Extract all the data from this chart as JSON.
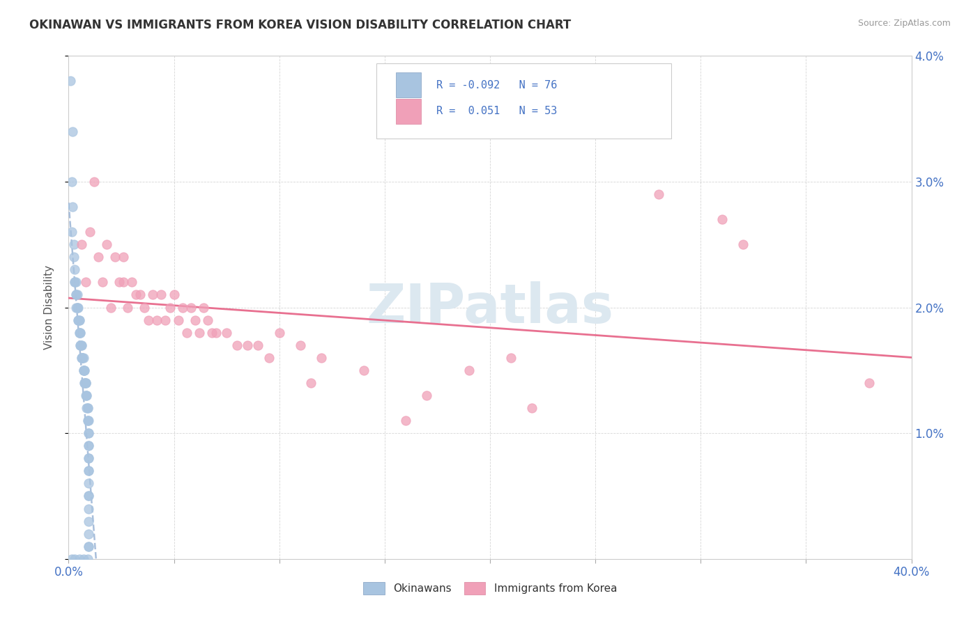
{
  "title": "OKINAWAN VS IMMIGRANTS FROM KOREA VISION DISABILITY CORRELATION CHART",
  "source": "Source: ZipAtlas.com",
  "ylabel": "Vision Disability",
  "xlim": [
    0.0,
    0.4
  ],
  "ylim": [
    0.0,
    0.04
  ],
  "okinawan_color": "#a8c4e0",
  "korea_color": "#f0a0b8",
  "trend_blue_color": "#a0b8d8",
  "trend_pink_color": "#e87090",
  "watermark_color": "#dce8f0",
  "okinawan_scatter": [
    [
      0.0008,
      0.038
    ],
    [
      0.0015,
      0.03
    ],
    [
      0.0015,
      0.026
    ],
    [
      0.002,
      0.034
    ],
    [
      0.002,
      0.028
    ],
    [
      0.0025,
      0.025
    ],
    [
      0.0025,
      0.024
    ],
    [
      0.003,
      0.023
    ],
    [
      0.003,
      0.022
    ],
    [
      0.003,
      0.022
    ],
    [
      0.0035,
      0.022
    ],
    [
      0.0035,
      0.021
    ],
    [
      0.0035,
      0.021
    ],
    [
      0.0035,
      0.02
    ],
    [
      0.004,
      0.021
    ],
    [
      0.004,
      0.02
    ],
    [
      0.004,
      0.02
    ],
    [
      0.0045,
      0.02
    ],
    [
      0.0045,
      0.019
    ],
    [
      0.0045,
      0.019
    ],
    [
      0.005,
      0.019
    ],
    [
      0.005,
      0.019
    ],
    [
      0.005,
      0.018
    ],
    [
      0.005,
      0.018
    ],
    [
      0.0055,
      0.018
    ],
    [
      0.0055,
      0.018
    ],
    [
      0.0055,
      0.017
    ],
    [
      0.0055,
      0.017
    ],
    [
      0.006,
      0.017
    ],
    [
      0.006,
      0.017
    ],
    [
      0.006,
      0.016
    ],
    [
      0.006,
      0.016
    ],
    [
      0.0065,
      0.016
    ],
    [
      0.0065,
      0.016
    ],
    [
      0.0065,
      0.016
    ],
    [
      0.007,
      0.016
    ],
    [
      0.007,
      0.015
    ],
    [
      0.007,
      0.015
    ],
    [
      0.007,
      0.015
    ],
    [
      0.0075,
      0.015
    ],
    [
      0.0075,
      0.015
    ],
    [
      0.0075,
      0.014
    ],
    [
      0.0075,
      0.014
    ],
    [
      0.008,
      0.014
    ],
    [
      0.008,
      0.014
    ],
    [
      0.008,
      0.014
    ],
    [
      0.008,
      0.013
    ],
    [
      0.0085,
      0.013
    ],
    [
      0.0085,
      0.013
    ],
    [
      0.0085,
      0.012
    ],
    [
      0.009,
      0.012
    ],
    [
      0.009,
      0.012
    ],
    [
      0.009,
      0.011
    ],
    [
      0.009,
      0.011
    ],
    [
      0.0095,
      0.011
    ],
    [
      0.0095,
      0.01
    ],
    [
      0.0095,
      0.01
    ],
    [
      0.0095,
      0.009
    ],
    [
      0.0095,
      0.009
    ],
    [
      0.0095,
      0.008
    ],
    [
      0.0095,
      0.008
    ],
    [
      0.0095,
      0.007
    ],
    [
      0.0095,
      0.007
    ],
    [
      0.0095,
      0.006
    ],
    [
      0.0095,
      0.005
    ],
    [
      0.0095,
      0.005
    ],
    [
      0.0095,
      0.004
    ],
    [
      0.0095,
      0.003
    ],
    [
      0.0095,
      0.002
    ],
    [
      0.0095,
      0.001
    ],
    [
      0.0095,
      0.001
    ],
    [
      0.0015,
      0.0
    ],
    [
      0.003,
      0.0
    ],
    [
      0.005,
      0.0
    ],
    [
      0.007,
      0.0
    ],
    [
      0.009,
      0.0
    ]
  ],
  "korea_scatter": [
    [
      0.006,
      0.025
    ],
    [
      0.008,
      0.022
    ],
    [
      0.01,
      0.026
    ],
    [
      0.012,
      0.03
    ],
    [
      0.014,
      0.024
    ],
    [
      0.016,
      0.022
    ],
    [
      0.018,
      0.025
    ],
    [
      0.02,
      0.02
    ],
    [
      0.022,
      0.024
    ],
    [
      0.024,
      0.022
    ],
    [
      0.026,
      0.024
    ],
    [
      0.026,
      0.022
    ],
    [
      0.028,
      0.02
    ],
    [
      0.03,
      0.022
    ],
    [
      0.032,
      0.021
    ],
    [
      0.034,
      0.021
    ],
    [
      0.036,
      0.02
    ],
    [
      0.038,
      0.019
    ],
    [
      0.04,
      0.021
    ],
    [
      0.042,
      0.019
    ],
    [
      0.044,
      0.021
    ],
    [
      0.046,
      0.019
    ],
    [
      0.048,
      0.02
    ],
    [
      0.05,
      0.021
    ],
    [
      0.052,
      0.019
    ],
    [
      0.054,
      0.02
    ],
    [
      0.056,
      0.018
    ],
    [
      0.058,
      0.02
    ],
    [
      0.06,
      0.019
    ],
    [
      0.062,
      0.018
    ],
    [
      0.064,
      0.02
    ],
    [
      0.066,
      0.019
    ],
    [
      0.068,
      0.018
    ],
    [
      0.07,
      0.018
    ],
    [
      0.075,
      0.018
    ],
    [
      0.08,
      0.017
    ],
    [
      0.085,
      0.017
    ],
    [
      0.09,
      0.017
    ],
    [
      0.095,
      0.016
    ],
    [
      0.1,
      0.018
    ],
    [
      0.11,
      0.017
    ],
    [
      0.115,
      0.014
    ],
    [
      0.12,
      0.016
    ],
    [
      0.14,
      0.015
    ],
    [
      0.16,
      0.011
    ],
    [
      0.17,
      0.013
    ],
    [
      0.19,
      0.015
    ],
    [
      0.21,
      0.016
    ],
    [
      0.22,
      0.012
    ],
    [
      0.28,
      0.029
    ],
    [
      0.31,
      0.027
    ],
    [
      0.32,
      0.025
    ],
    [
      0.38,
      0.014
    ]
  ]
}
